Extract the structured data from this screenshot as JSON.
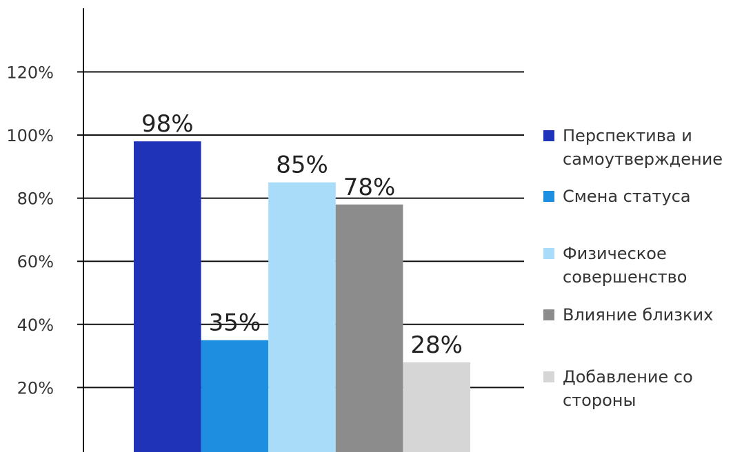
{
  "chart_data": {
    "type": "bar",
    "categories": [
      "Перспектива и самоутверждение",
      "Смена статуса",
      "Физическое совершенство",
      "Влияние близких",
      "Добавление со стороны"
    ],
    "values": [
      98,
      35,
      85,
      78,
      28
    ],
    "value_labels": [
      "98%",
      "35%",
      "85%",
      "78%",
      "28%"
    ],
    "colors": [
      "#1f33b8",
      "#1e8fe0",
      "#a8dcf8",
      "#8c8c8c",
      "#d6d6d6"
    ],
    "ylim": [
      0,
      140
    ],
    "yticks": [
      20,
      40,
      60,
      80,
      100,
      120
    ],
    "ytick_labels": [
      "20%",
      "40%",
      "60%",
      "80%",
      "100%",
      "120%"
    ],
    "grid": true,
    "legend_position": "right",
    "title": "",
    "xlabel": "",
    "ylabel": ""
  },
  "legend": {
    "items": [
      {
        "label": "Перспектива и самоутверждение",
        "color": "#1f33b8"
      },
      {
        "label": "Смена статуса",
        "color": "#1e8fe0"
      },
      {
        "label": "Физическое совершенство",
        "color": "#a8dcf8"
      },
      {
        "label": "Влияние близких",
        "color": "#8c8c8c"
      },
      {
        "label": "Добавление со стороны",
        "color": "#d6d6d6"
      }
    ]
  }
}
